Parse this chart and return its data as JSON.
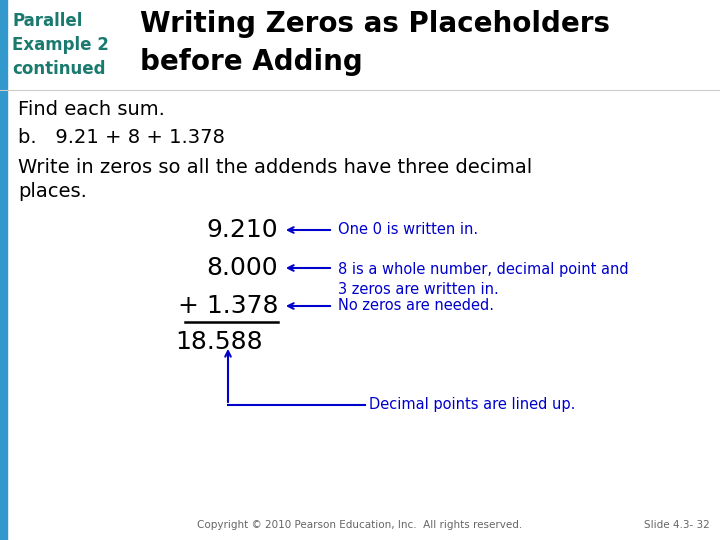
{
  "bg_color": "#ffffff",
  "teal_color": "#1a7a6e",
  "blue_color": "#0000CC",
  "black": "#000000",
  "sidebar_color": "#3399cc",
  "left_label_lines": [
    "Parallel",
    "Example 2",
    "continued"
  ],
  "title_lines": [
    "Writing Zeros as Placeholders",
    "before Adding"
  ],
  "body_text1": "Find each sum.",
  "body_text2": "b.   9.21 + 8 + 1.378",
  "body_text3": "Write in zeros so all the addends have three decimal\nplaces.",
  "num1": "9.210",
  "num2": "8.000",
  "num3": "+ 1.378",
  "sum_line": "18.588",
  "annotation1": "One 0 is written in.",
  "annotation2": "8 is a whole number, decimal point and\n3 zeros are written in.",
  "annotation3": "No zeros are needed.",
  "annotation4": "Decimal points are lined up.",
  "footer": "Copyright © 2010 Pearson Education, Inc.  All rights reserved.",
  "slide_num": "Slide 4.3- 32"
}
